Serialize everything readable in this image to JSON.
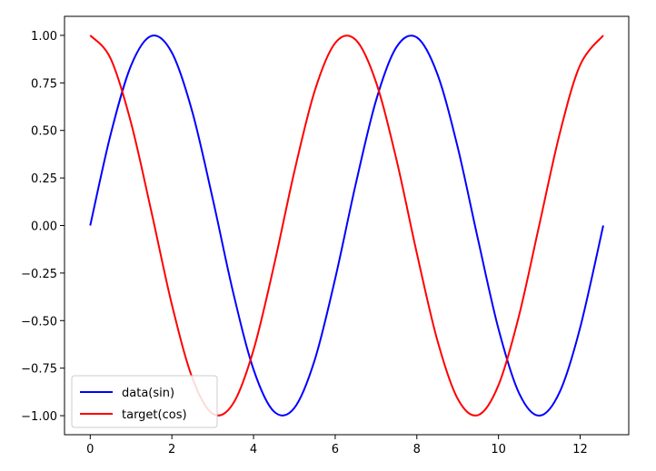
{
  "chart_data": {
    "type": "line",
    "title": "",
    "xlabel": "",
    "ylabel": "",
    "xlim": [
      -0.63,
      13.19
    ],
    "ylim": [
      -1.1,
      1.1
    ],
    "xticks": [
      0,
      2,
      4,
      6,
      8,
      10,
      12
    ],
    "xtick_labels": [
      "0",
      "2",
      "4",
      "6",
      "8",
      "10",
      "12"
    ],
    "yticks": [
      1.0,
      0.75,
      0.5,
      0.25,
      0.0,
      -0.25,
      -0.5,
      -0.75,
      -1.0
    ],
    "ytick_labels": [
      "1.00",
      "0.75",
      "0.50",
      "0.25",
      "0.00",
      "−0.25",
      "−0.50",
      "−0.75",
      "−1.00"
    ],
    "grid": false,
    "legend_position": "lower-left",
    "x": [
      0,
      0.5,
      1,
      1.5,
      2,
      2.5,
      3,
      3.5,
      4,
      4.5,
      5,
      5.5,
      6,
      6.5,
      7,
      7.5,
      8,
      8.5,
      9,
      9.5,
      10,
      10.5,
      11,
      11.5,
      12,
      12.566
    ],
    "series": [
      {
        "name": "data(sin)",
        "color": "#0000ff",
        "values": [
          0.0,
          0.479,
          0.841,
          0.997,
          0.909,
          0.598,
          0.141,
          -0.351,
          -0.757,
          -0.978,
          -0.959,
          -0.706,
          -0.279,
          0.215,
          0.657,
          0.938,
          0.989,
          0.798,
          0.412,
          -0.075,
          -0.544,
          -0.88,
          -1.0,
          -0.875,
          -0.537,
          0.0
        ]
      },
      {
        "name": "target(cos)",
        "color": "#ff0000",
        "values": [
          1.0,
          0.878,
          0.54,
          0.071,
          -0.416,
          -0.801,
          -0.99,
          -0.936,
          -0.654,
          -0.211,
          0.284,
          0.709,
          0.96,
          0.977,
          0.754,
          0.347,
          -0.146,
          -0.602,
          -0.911,
          -0.997,
          -0.839,
          -0.476,
          0.004,
          0.484,
          0.844,
          1.0
        ]
      }
    ]
  }
}
